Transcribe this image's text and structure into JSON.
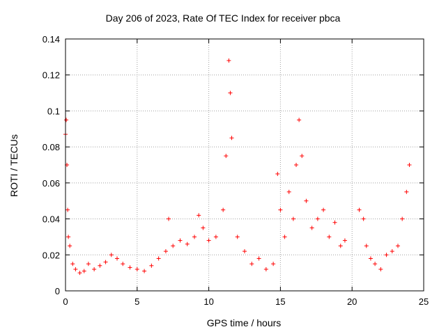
{
  "chart_data": {
    "type": "scatter",
    "title": "Day 206 of 2023, Rate Of TEC Index for receiver pbca",
    "xlabel": "GPS time / hours",
    "ylabel": "ROTI / TECUs",
    "xlim": [
      0,
      25
    ],
    "ylim": [
      0,
      0.14
    ],
    "x_ticks": [
      "0",
      "5",
      "10",
      "15",
      "20",
      "25"
    ],
    "y_ticks": [
      "0",
      "0.02",
      "0.04",
      "0.06",
      "0.08",
      "0.1",
      "0.12",
      "0.14"
    ],
    "grid": true,
    "marker": "+",
    "color": "#ff0000",
    "series": [
      {
        "x": [
          0.0,
          0.05,
          0.1,
          0.15,
          0.2,
          0.3,
          0.5,
          0.7,
          1.0,
          1.3,
          1.6,
          2.0,
          2.4,
          2.8,
          3.2,
          3.6,
          4.0,
          4.5,
          5.0,
          5.5,
          6.0,
          6.5,
          7.0,
          7.2,
          7.5,
          8.0,
          8.5,
          9.0,
          9.3,
          9.6,
          10.0,
          10.5,
          11.0,
          11.2,
          11.4,
          11.5,
          11.6,
          12.0,
          12.5,
          13.0,
          13.5,
          14.0,
          14.5,
          14.8,
          15.0,
          15.3,
          15.6,
          15.9,
          16.1,
          16.3,
          16.5,
          16.8,
          17.2,
          17.6,
          18.0,
          18.4,
          18.8,
          19.2,
          19.5,
          20.5,
          20.8,
          21.0,
          21.3,
          21.6,
          22.0,
          22.4,
          22.8,
          23.2,
          23.5,
          23.8,
          24.0
        ],
        "y": [
          0.087,
          0.095,
          0.07,
          0.045,
          0.03,
          0.025,
          0.015,
          0.012,
          0.01,
          0.011,
          0.015,
          0.012,
          0.014,
          0.016,
          0.02,
          0.018,
          0.015,
          0.013,
          0.012,
          0.011,
          0.014,
          0.018,
          0.022,
          0.04,
          0.025,
          0.028,
          0.026,
          0.03,
          0.042,
          0.035,
          0.028,
          0.03,
          0.045,
          0.075,
          0.128,
          0.11,
          0.085,
          0.03,
          0.022,
          0.015,
          0.018,
          0.012,
          0.015,
          0.065,
          0.045,
          0.03,
          0.055,
          0.04,
          0.07,
          0.095,
          0.075,
          0.05,
          0.035,
          0.04,
          0.045,
          0.03,
          0.038,
          0.025,
          0.028,
          0.045,
          0.04,
          0.025,
          0.018,
          0.015,
          0.012,
          0.02,
          0.022,
          0.025,
          0.04,
          0.055,
          0.07
        ]
      }
    ]
  }
}
